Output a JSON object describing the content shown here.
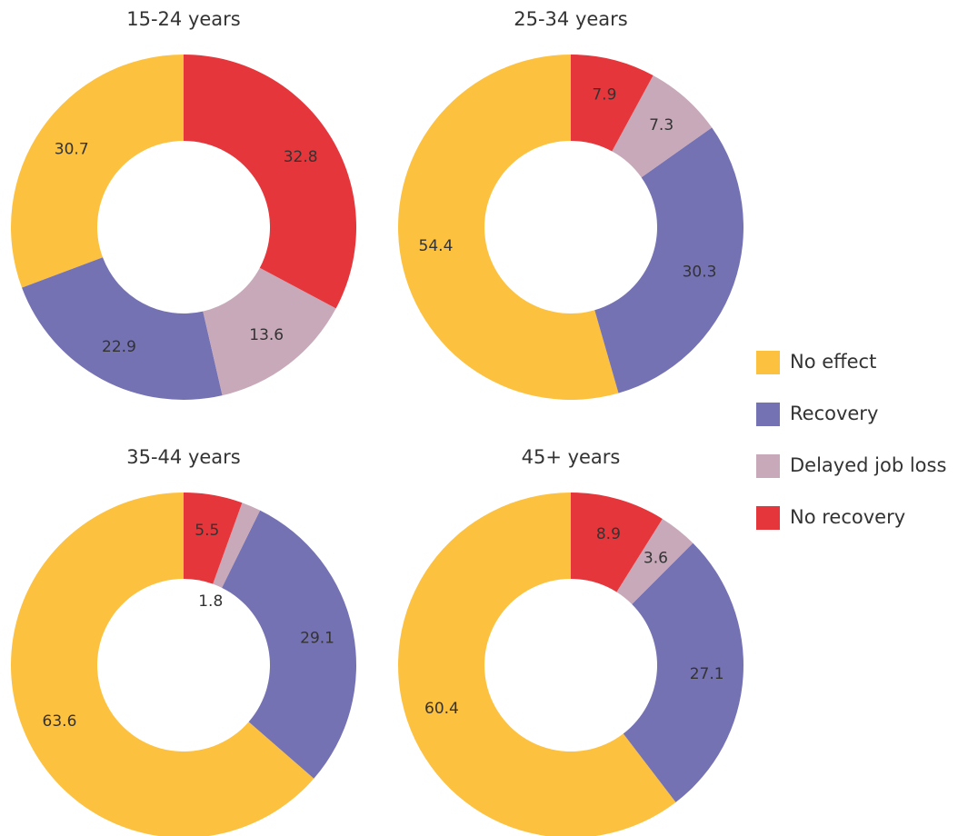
{
  "chart_data": [
    {
      "type": "pie",
      "title": "15-24 years",
      "categories": [
        "No effect",
        "Recovery",
        "Delayed job loss",
        "No recovery"
      ],
      "values": [
        30.7,
        22.9,
        13.6,
        32.8
      ],
      "colors": [
        "#fdc140",
        "#7472b3",
        "#c8a9b9",
        "#e5363b"
      ]
    },
    {
      "type": "pie",
      "title": "25-34 years",
      "categories": [
        "No effect",
        "Recovery",
        "Delayed job loss",
        "No recovery"
      ],
      "values": [
        54.4,
        30.3,
        7.3,
        7.9
      ],
      "colors": [
        "#fdc140",
        "#7472b3",
        "#c8a9b9",
        "#e5363b"
      ]
    },
    {
      "type": "pie",
      "title": "35-44 years",
      "categories": [
        "No effect",
        "Recovery",
        "Delayed job loss",
        "No recovery"
      ],
      "values": [
        63.6,
        29.1,
        1.8,
        5.5
      ],
      "colors": [
        "#fdc140",
        "#7472b3",
        "#c8a9b9",
        "#e5363b"
      ]
    },
    {
      "type": "pie",
      "title": "45+ years",
      "categories": [
        "No effect",
        "Recovery",
        "Delayed job loss",
        "No recovery"
      ],
      "values": [
        60.4,
        27.1,
        3.6,
        8.9
      ],
      "colors": [
        "#fdc140",
        "#7472b3",
        "#c8a9b9",
        "#e5363b"
      ]
    }
  ]
}
